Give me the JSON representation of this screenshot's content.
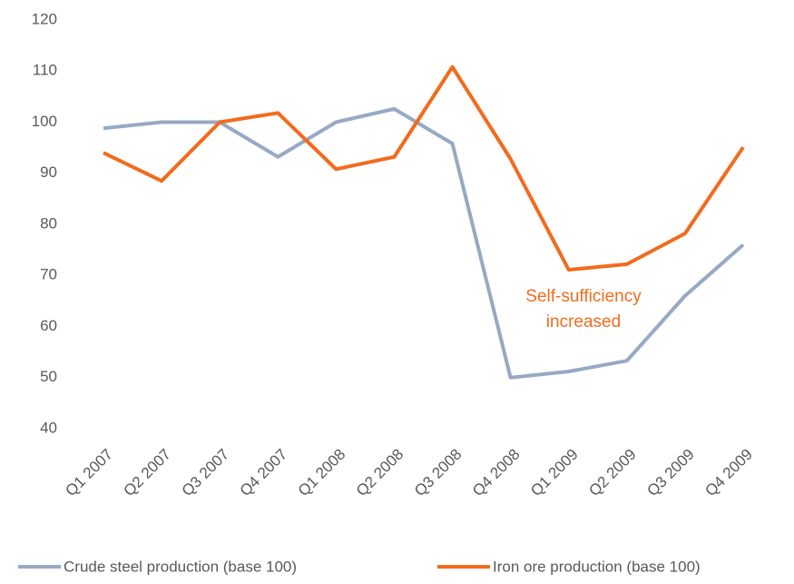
{
  "chart_data": {
    "type": "line",
    "categories": [
      "Q1 2007",
      "Q2 2007",
      "Q3 2007",
      "Q4 2007",
      "Q1 2008",
      "Q2 2008",
      "Q3 2008",
      "Q4 2008",
      "Q1 2009",
      "Q2 2009",
      "Q3 2009",
      "Q4 2009"
    ],
    "series": [
      {
        "name": "Crude steel production (base 100)",
        "color": "#97a9c4",
        "values": [
          98.8,
          100,
          100,
          93.2,
          100,
          102.6,
          95.8,
          50,
          51.2,
          53.3,
          66,
          76
        ]
      },
      {
        "name": "Iron ore production (base 100)",
        "color": "#f26b1d",
        "values": [
          94,
          88.5,
          100,
          101.8,
          90.8,
          93.2,
          110.8,
          92.8,
          71.1,
          72.2,
          78.2,
          95.1
        ]
      }
    ],
    "ylim": [
      40,
      120
    ],
    "yticks": [
      40,
      50,
      60,
      70,
      80,
      90,
      100,
      110,
      120
    ],
    "grid": false,
    "annotation": {
      "text": "Self-sufficiency increased",
      "color": "#f26b1d"
    },
    "legend": "bottom"
  }
}
